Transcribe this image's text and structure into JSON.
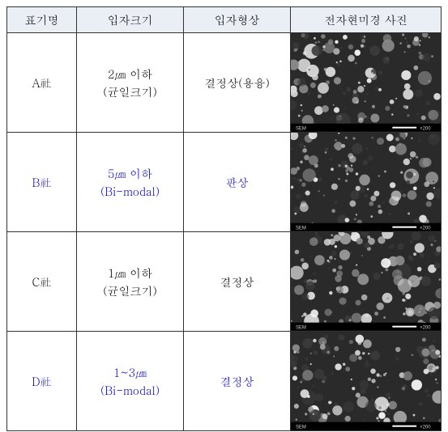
{
  "headers": {
    "label": "표기명",
    "size": "입자크기",
    "shape": "입자형상",
    "image": "전자현미경 사진"
  },
  "rows": [
    {
      "label": "A社",
      "size_line1": "2㎛ 이하",
      "size_line2": "(균일크기)",
      "shape": "결정상(용융)",
      "text_color": "#000000",
      "sem_seed": 1
    },
    {
      "label": "B社",
      "size_line1": "5㎛ 이하",
      "size_line2": "(Bi-modal)",
      "shape": "판상",
      "text_color": "#0000cc",
      "sem_seed": 2
    },
    {
      "label": "C社",
      "size_line1": "1㎛ 이하",
      "size_line2": "(균일크기)",
      "shape": "결정상",
      "text_color": "#000000",
      "sem_seed": 3
    },
    {
      "label": "D社",
      "size_line1": "1~3㎛",
      "size_line2": "(Bi-modal)",
      "shape": "결정상",
      "text_color": "#0000cc",
      "sem_seed": 4
    }
  ],
  "sem_palette": {
    "bg": "#2a2a2a",
    "dark": "#3a3a3a",
    "mid": "#8a8a8a",
    "light": "#d8d8d8",
    "hilite": "#f2f2f2"
  }
}
